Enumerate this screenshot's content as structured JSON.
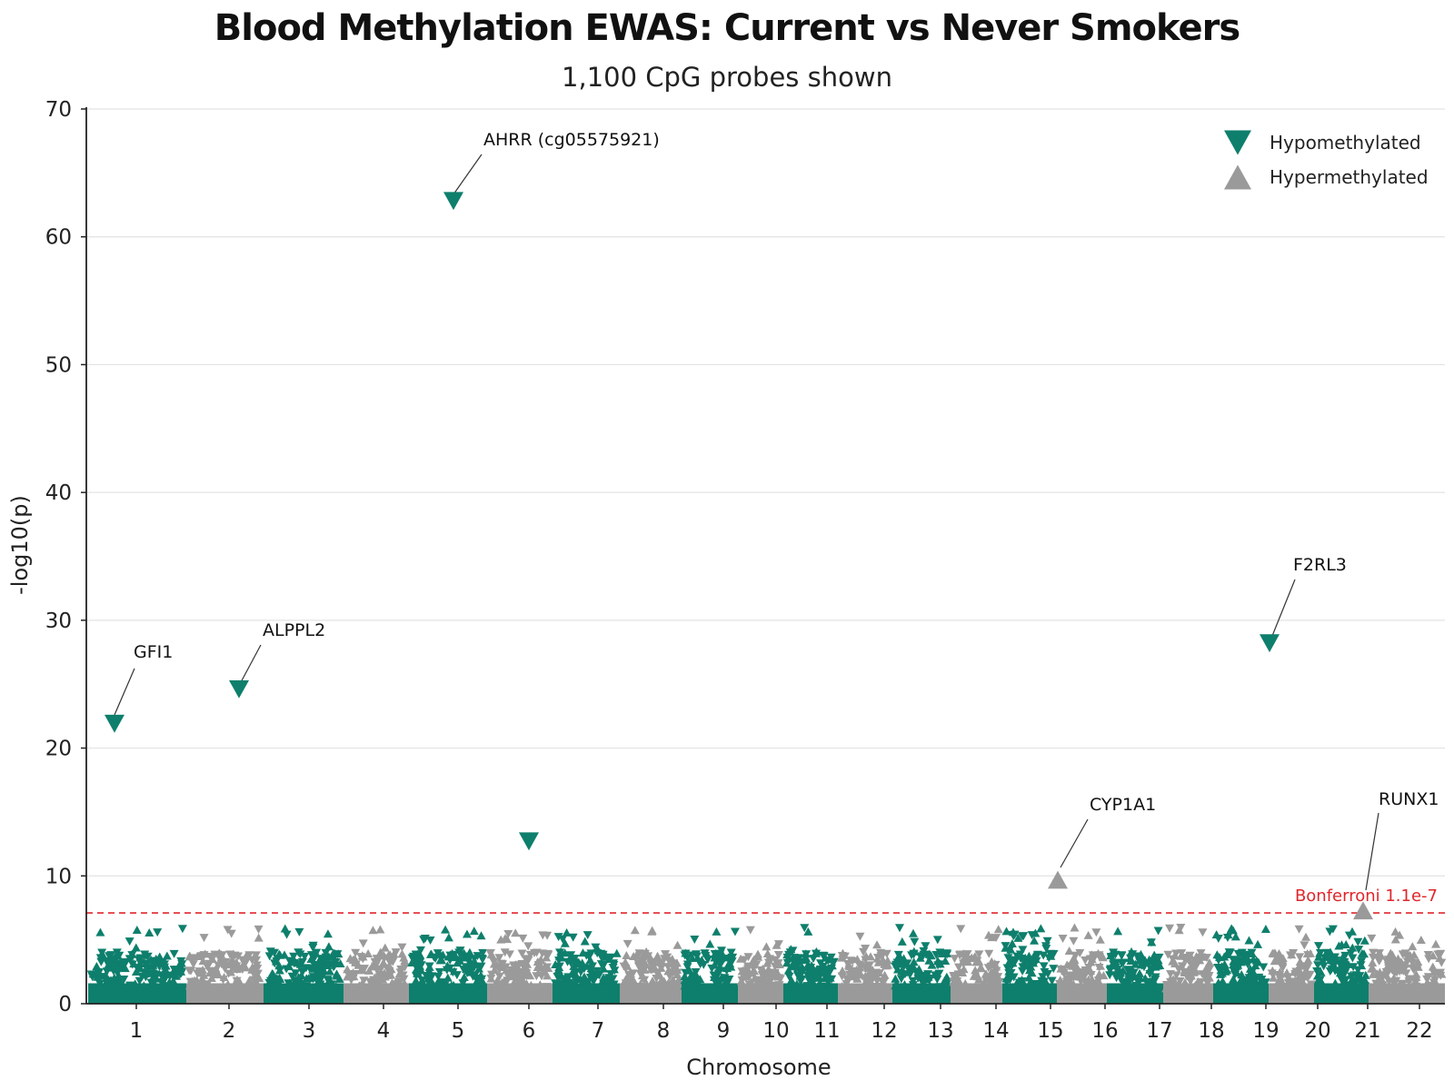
{
  "chart_data": {
    "type": "scatter",
    "title": "Blood Methylation EWAS: Current vs Never Smokers",
    "subtitle": "1,100 CpG probes shown",
    "xlabel": "Chromosome",
    "ylabel": "-log10(p)",
    "ylim": [
      0,
      70
    ],
    "yticks": [
      0,
      10,
      20,
      30,
      40,
      50,
      60,
      70
    ],
    "categories": [
      "1",
      "2",
      "3",
      "4",
      "5",
      "6",
      "7",
      "8",
      "9",
      "10",
      "11",
      "12",
      "13",
      "14",
      "15",
      "16",
      "17",
      "18",
      "19",
      "20",
      "21",
      "22"
    ],
    "grid": "horizontal",
    "legend_placement": "top-right",
    "colors": {
      "hypo": "#0e7f6c",
      "hyper": "#9a9a9a",
      "threshold": "#e0262b",
      "gridline": "#e3e3e3"
    },
    "threshold": {
      "value": 7.1,
      "label": "Bonferroni 1.1e-7"
    },
    "series": [
      {
        "name": "Hypomethylated",
        "marker": "triangle-down"
      },
      {
        "name": "Hypermethylated",
        "marker": "triangle-up"
      }
    ],
    "highlighted": [
      {
        "label": "GFI1",
        "chromosome": "1",
        "y": 21.9,
        "series": "Hypomethylated"
      },
      {
        "label": "ALPPL2",
        "chromosome": "2",
        "y": 24.6,
        "series": "Hypomethylated"
      },
      {
        "label": "AHRR (cg05575921)",
        "chromosome": "5",
        "y": 62.8,
        "series": "Hypomethylated"
      },
      {
        "label": "",
        "chromosome": "6",
        "y": 12.7,
        "series": "Hypomethylated"
      },
      {
        "label": "CYP1A1",
        "chromosome": "15",
        "y": 9.7,
        "series": "Hypermethylated"
      },
      {
        "label": "F2RL3",
        "chromosome": "19",
        "y": 28.2,
        "series": "Hypomethylated"
      },
      {
        "label": "RUNX1",
        "chromosome": "21",
        "y": 7.3,
        "series": "Hypermethylated"
      }
    ],
    "background_probes": {
      "count": 1100,
      "y_range": [
        0,
        6.0
      ],
      "typical_max": 4.0
    }
  }
}
